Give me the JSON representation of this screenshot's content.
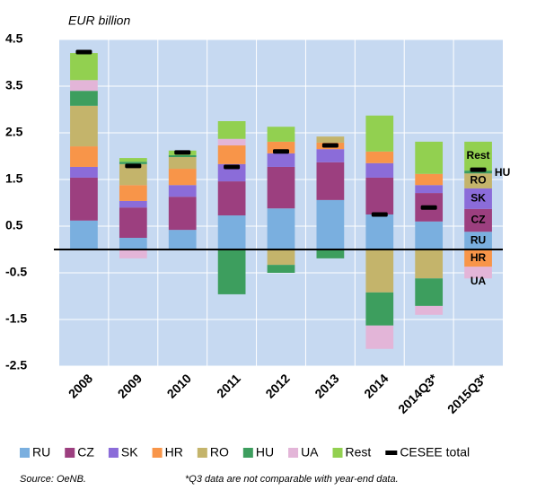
{
  "chart_data": {
    "type": "stacked_bar",
    "y_label": "EUR billion",
    "categories": [
      "2008",
      "2009",
      "2010",
      "2011",
      "2012",
      "2013",
      "2014",
      "2014Q3*",
      "2015Q3*"
    ],
    "series": [
      {
        "name": "RU",
        "color": "#7aafdf",
        "values": [
          0.62,
          0.25,
          0.42,
          0.73,
          0.88,
          1.06,
          0.75,
          0.6,
          0.38
        ]
      },
      {
        "name": "CZ",
        "color": "#9c3f7f",
        "values": [
          0.92,
          0.65,
          0.71,
          0.73,
          0.89,
          0.81,
          0.79,
          0.61,
          0.49
        ]
      },
      {
        "name": "SK",
        "color": "#8b6cd9",
        "values": [
          0.23,
          0.14,
          0.25,
          0.37,
          0.29,
          0.28,
          0.31,
          0.17,
          0.44
        ]
      },
      {
        "name": "HR",
        "color": "#f89549",
        "values": [
          0.44,
          0.34,
          0.35,
          0.4,
          0.25,
          0.14,
          0.25,
          0.24,
          -0.37
        ]
      },
      {
        "name": "RO",
        "color": "#c4b46b",
        "values": [
          0.87,
          0.45,
          0.25,
          0,
          -0.33,
          0.13,
          -0.92,
          -0.62,
          0.32
        ]
      },
      {
        "name": "HU",
        "color": "#3d9e5e",
        "values": [
          0.32,
          0.05,
          0.04,
          -0.96,
          -0.17,
          -0.19,
          -0.71,
          -0.59,
          0.06
        ]
      },
      {
        "name": "UA",
        "color": "#e3b5d8",
        "values": [
          0.23,
          -0.19,
          0,
          0.14,
          0,
          0,
          -0.5,
          -0.19,
          -0.25
        ]
      },
      {
        "name": "Rest",
        "color": "#92d050",
        "values": [
          0.58,
          0.08,
          0.1,
          0.38,
          0.32,
          0,
          0.77,
          0.69,
          0.62
        ]
      }
    ],
    "total": {
      "name": "CESEE total",
      "color": "#000000",
      "values": [
        4.23,
        1.79,
        2.08,
        1.77,
        2.1,
        2.23,
        0.75,
        0.9,
        1.71
      ]
    },
    "ylim": [
      -2.5,
      4.5
    ],
    "yticks": [
      -2.5,
      -1.5,
      -0.5,
      0.5,
      1.5,
      2.5,
      3.5,
      4.5
    ],
    "grid": true,
    "plot_background": "#c6d9f1",
    "labeled_category": 8,
    "source": "Source: OeNB.",
    "footnote": "*Q3 data are not comparable with year-end data."
  }
}
